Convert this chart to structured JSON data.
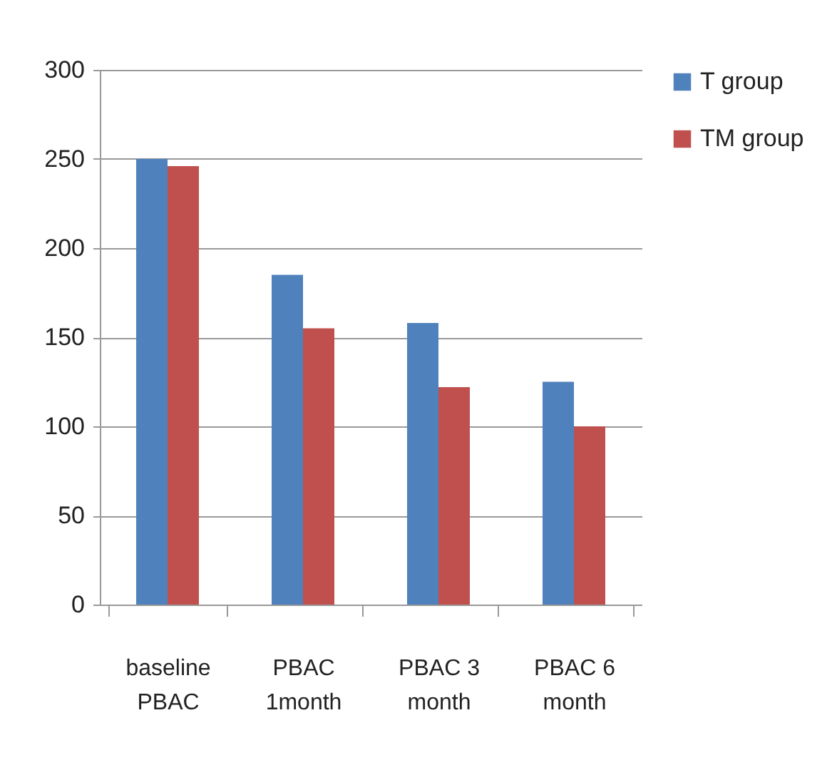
{
  "chart_data": {
    "type": "bar",
    "categories": [
      "baseline PBAC",
      "PBAC 1month",
      "PBAC 3 month",
      "PBAC 6 month"
    ],
    "series": [
      {
        "name": "T group",
        "color": "#4f81bd",
        "values": [
          250,
          185,
          158,
          125
        ]
      },
      {
        "name": "TM group",
        "color": "#c0504d",
        "values": [
          246,
          155,
          122,
          100
        ]
      }
    ],
    "ylim": [
      0,
      300
    ],
    "yticks": [
      0,
      50,
      100,
      150,
      200,
      250,
      300
    ],
    "grid": "y",
    "legend": "right"
  }
}
